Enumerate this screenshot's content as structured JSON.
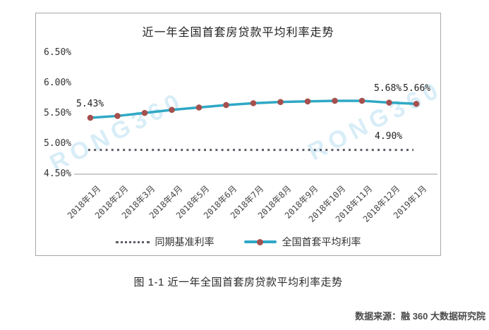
{
  "chart_data": {
    "type": "line",
    "title": "近一年全国首套房贷款平均利率走势",
    "categories": [
      "2018年1月",
      "2018年2月",
      "2018年3月",
      "2018年4月",
      "2018年5月",
      "2018年6月",
      "2018年7月",
      "2018年8月",
      "2018年9月",
      "2018年10月",
      "2018年11月",
      "2018年12月",
      "2019年1月"
    ],
    "series": [
      {
        "name": "同期基准利率",
        "style": "dotted",
        "color": "#5c5c66",
        "values": [
          4.9,
          4.9,
          4.9,
          4.9,
          4.9,
          4.9,
          4.9,
          4.9,
          4.9,
          4.9,
          4.9,
          4.9,
          4.9
        ]
      },
      {
        "name": "全国首套平均利率",
        "style": "solid-with-markers",
        "color": "#2fa8c5",
        "marker_color": "#a5504e",
        "values": [
          5.43,
          5.46,
          5.51,
          5.56,
          5.6,
          5.64,
          5.67,
          5.69,
          5.7,
          5.71,
          5.71,
          5.68,
          5.66
        ]
      }
    ],
    "y_ticks": [
      "6.50%",
      "6.00%",
      "5.50%",
      "5.00%",
      "4.50%"
    ],
    "y_tick_values": [
      6.5,
      6.0,
      5.5,
      5.0,
      4.5
    ],
    "ylim": [
      4.5,
      6.7
    ],
    "grid": false,
    "legend_position": "bottom",
    "annotations": [
      {
        "text": "5.43%",
        "target": "2018年1月 first point"
      },
      {
        "text": "5.68%",
        "target": "2018年12月 point"
      },
      {
        "text": "5.66%",
        "target": "2019年1月 point"
      },
      {
        "text": "4.90%",
        "target": "benchmark dotted line"
      }
    ]
  },
  "figure": {
    "caption": "图 1-1 近一年全国首套房贷款平均利率走势",
    "source": "数据来源：融 360 大数据研究院",
    "watermark": "RONG360"
  },
  "colors": {
    "line": "#2fa8c5",
    "marker": "#a5504e",
    "benchmark": "#5c5c66",
    "axis": "#9a9a9a",
    "border": "#a8a8a8",
    "watermark": "rgba(125,195,228,0.30)"
  }
}
